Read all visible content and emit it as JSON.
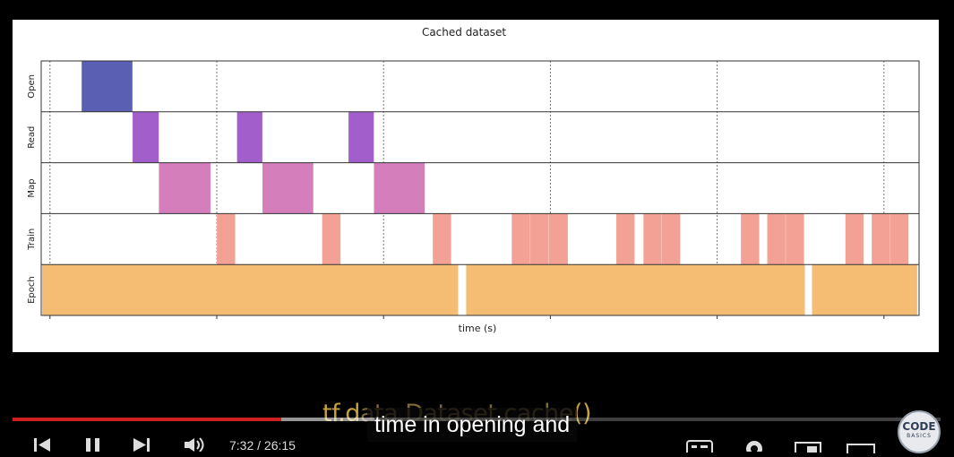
{
  "chart_data": {
    "type": "timeline",
    "title": "Cached dataset",
    "xlabel": "time (s)",
    "rows": [
      "Open",
      "Read",
      "Map",
      "Train",
      "Epoch"
    ],
    "xlim": [
      0,
      1
    ],
    "grid_x": [
      0.01,
      0.2,
      0.39,
      0.58,
      0.77,
      0.96
    ],
    "colors": {
      "Open": "#5b5fb4",
      "Read": "#a25fcb",
      "Map": "#d47ebb",
      "Train": "#f3a195",
      "Epoch": "#f5bd74"
    },
    "events": [
      {
        "row": "Open",
        "start": 0.046,
        "end": 0.104
      },
      {
        "row": "Read",
        "start": 0.104,
        "end": 0.134
      },
      {
        "row": "Read",
        "start": 0.223,
        "end": 0.252
      },
      {
        "row": "Read",
        "start": 0.35,
        "end": 0.379
      },
      {
        "row": "Map",
        "start": 0.134,
        "end": 0.193
      },
      {
        "row": "Map",
        "start": 0.252,
        "end": 0.31
      },
      {
        "row": "Map",
        "start": 0.379,
        "end": 0.437
      },
      {
        "row": "Train",
        "start": 0.2,
        "end": 0.221
      },
      {
        "row": "Train",
        "start": 0.32,
        "end": 0.341
      },
      {
        "row": "Train",
        "start": 0.446,
        "end": 0.467
      },
      {
        "row": "Train",
        "start": 0.536,
        "end": 0.557
      },
      {
        "row": "Train",
        "start": 0.557,
        "end": 0.578
      },
      {
        "row": "Train",
        "start": 0.578,
        "end": 0.6
      },
      {
        "row": "Train",
        "start": 0.655,
        "end": 0.676
      },
      {
        "row": "Train",
        "start": 0.686,
        "end": 0.707
      },
      {
        "row": "Train",
        "start": 0.707,
        "end": 0.728
      },
      {
        "row": "Train",
        "start": 0.797,
        "end": 0.818
      },
      {
        "row": "Train",
        "start": 0.827,
        "end": 0.848
      },
      {
        "row": "Train",
        "start": 0.848,
        "end": 0.869
      },
      {
        "row": "Train",
        "start": 0.916,
        "end": 0.937
      },
      {
        "row": "Train",
        "start": 0.946,
        "end": 0.967
      },
      {
        "row": "Train",
        "start": 0.967,
        "end": 0.988
      },
      {
        "row": "Epoch",
        "start": 0.001,
        "end": 0.475
      },
      {
        "row": "Epoch",
        "start": 0.484,
        "end": 0.87
      },
      {
        "row": "Epoch",
        "start": 0.878,
        "end": 0.998
      }
    ]
  },
  "video": {
    "slide_text_bright_1": "tf.d",
    "slide_text_dim": "ata.Dataset.cache",
    "slide_text_bright_2": "()",
    "caption": "time in opening and",
    "time_display": "7:32 / 26:15",
    "played_fraction": 0.29,
    "loaded_fraction": 0.39,
    "channel_logo_line1": "CODE",
    "channel_logo_line2": "BASICS",
    "player_icons": [
      "previous-icon",
      "pause-icon",
      "next-icon",
      "volume-icon",
      "subtitles-icon",
      "settings-icon",
      "miniplayer-icon",
      "theater-icon",
      "fullscreen-icon"
    ]
  }
}
